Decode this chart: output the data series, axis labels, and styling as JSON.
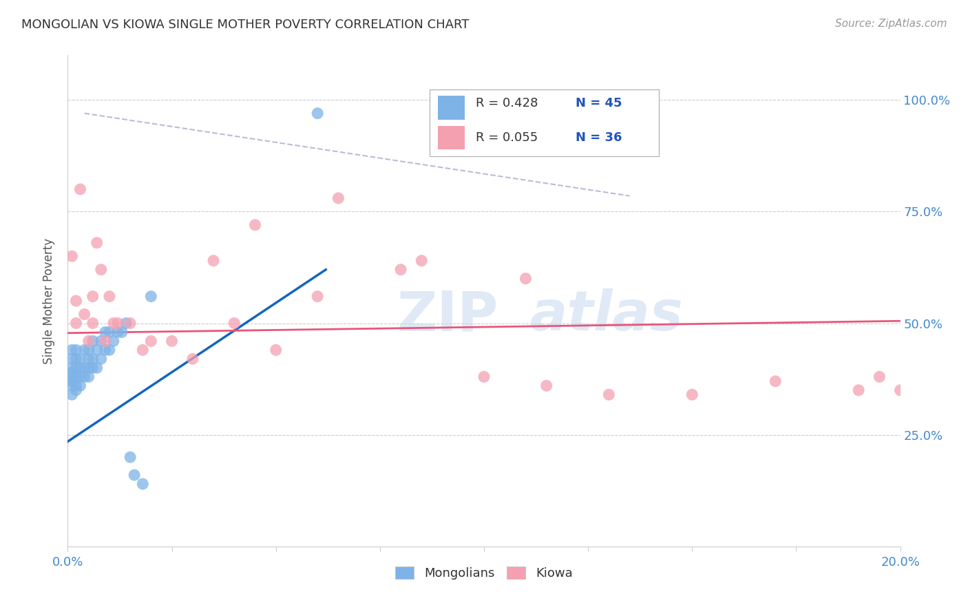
{
  "title": "MONGOLIAN VS KIOWA SINGLE MOTHER POVERTY CORRELATION CHART",
  "source": "Source: ZipAtlas.com",
  "ylabel": "Single Mother Poverty",
  "ytick_labels": [
    "25.0%",
    "50.0%",
    "75.0%",
    "100.0%"
  ],
  "ytick_values": [
    0.25,
    0.5,
    0.75,
    1.0
  ],
  "xlim": [
    0.0,
    0.2
  ],
  "ylim": [
    0.0,
    1.1
  ],
  "legend_r_mongolian": "R = 0.428",
  "legend_n_mongolian": "N = 45",
  "legend_r_kiowa": "R = 0.055",
  "legend_n_kiowa": "N = 36",
  "color_mongolian": "#7EB3E8",
  "color_kiowa": "#F4A0B0",
  "color_line_mongolian": "#1565C0",
  "color_line_kiowa": "#E8567A",
  "color_dashed": "#AAAACC",
  "watermark_zip": "ZIP",
  "watermark_atlas": "atlas",
  "watermark_color": "#C8D8F0",
  "mongolian_x": [
    0.001,
    0.001,
    0.001,
    0.001,
    0.001,
    0.001,
    0.001,
    0.001,
    0.002,
    0.002,
    0.002,
    0.002,
    0.002,
    0.002,
    0.003,
    0.003,
    0.003,
    0.003,
    0.004,
    0.004,
    0.004,
    0.005,
    0.005,
    0.005,
    0.005,
    0.006,
    0.006,
    0.006,
    0.007,
    0.007,
    0.008,
    0.008,
    0.009,
    0.009,
    0.01,
    0.01,
    0.011,
    0.012,
    0.013,
    0.014,
    0.015,
    0.016,
    0.018,
    0.02,
    0.06
  ],
  "mongolian_y": [
    0.34,
    0.36,
    0.37,
    0.38,
    0.39,
    0.4,
    0.42,
    0.44,
    0.35,
    0.36,
    0.38,
    0.4,
    0.42,
    0.44,
    0.36,
    0.38,
    0.4,
    0.42,
    0.38,
    0.4,
    0.44,
    0.38,
    0.4,
    0.42,
    0.44,
    0.4,
    0.42,
    0.46,
    0.4,
    0.44,
    0.42,
    0.46,
    0.44,
    0.48,
    0.44,
    0.48,
    0.46,
    0.48,
    0.48,
    0.5,
    0.2,
    0.16,
    0.14,
    0.56,
    0.97
  ],
  "kiowa_x": [
    0.001,
    0.002,
    0.002,
    0.003,
    0.004,
    0.005,
    0.006,
    0.006,
    0.007,
    0.008,
    0.009,
    0.01,
    0.011,
    0.012,
    0.015,
    0.018,
    0.02,
    0.025,
    0.03,
    0.035,
    0.04,
    0.045,
    0.05,
    0.06,
    0.065,
    0.08,
    0.085,
    0.1,
    0.11,
    0.115,
    0.13,
    0.15,
    0.17,
    0.19,
    0.195,
    0.2
  ],
  "kiowa_y": [
    0.65,
    0.5,
    0.55,
    0.8,
    0.52,
    0.46,
    0.56,
    0.5,
    0.68,
    0.62,
    0.46,
    0.56,
    0.5,
    0.5,
    0.5,
    0.44,
    0.46,
    0.46,
    0.42,
    0.64,
    0.5,
    0.72,
    0.44,
    0.56,
    0.78,
    0.62,
    0.64,
    0.38,
    0.6,
    0.36,
    0.34,
    0.34,
    0.37,
    0.35,
    0.38,
    0.35
  ],
  "mongolian_line_x": [
    0.0,
    0.062
  ],
  "mongolian_line_y": [
    0.235,
    0.62
  ],
  "kiowa_line_x": [
    0.0,
    0.2
  ],
  "kiowa_line_y": [
    0.478,
    0.505
  ],
  "dashed_line_x": [
    0.004,
    0.135
  ],
  "dashed_line_y": [
    0.97,
    0.785
  ]
}
